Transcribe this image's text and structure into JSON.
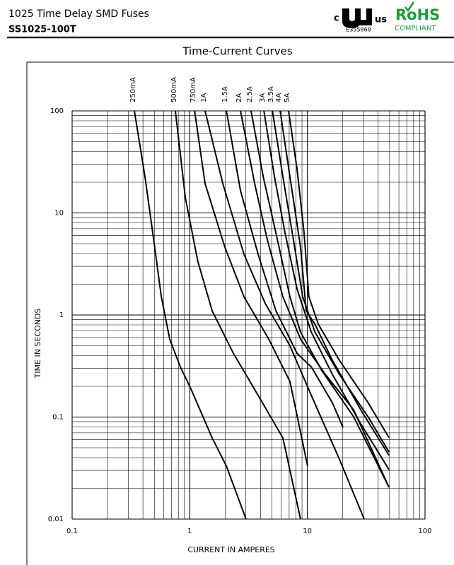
{
  "header": {
    "title": "1025 Time Delay SMD Fuses",
    "part": "SS1025-100T",
    "ul_c": "c",
    "ul_us": "us",
    "ul_file": "E355868",
    "rohs": "RoHS",
    "rohs_sub": "COMPLIANT"
  },
  "chart_data": {
    "type": "line",
    "title": "Time-Current Curves",
    "x_label": "CURRENT IN AMPERES",
    "y_label": "TIME IN SECONDS",
    "xscale": "log",
    "yscale": "log",
    "grid": true,
    "minor_grid": true,
    "color": "#000000",
    "xlim": [
      0.1,
      100
    ],
    "xticks": [
      0.1,
      1,
      10,
      100
    ],
    "ylim": [
      0.01,
      100
    ],
    "yticks": [
      0.01,
      0.1,
      1,
      10,
      100
    ],
    "series": [
      {
        "name": "250mA",
        "x": [
          0.338,
          0.416,
          0.499,
          0.573,
          0.676,
          0.832,
          1.02,
          1.55,
          2.05,
          3.01
        ],
        "values": [
          100,
          22.7,
          5.0,
          1.51,
          0.58,
          0.31,
          0.19,
          0.0625,
          0.033,
          0.01
        ]
      },
      {
        "name": "500mA",
        "x": [
          0.755,
          0.917,
          1.17,
          1.55,
          2.35,
          3.81,
          6.19,
          8.75
        ],
        "values": [
          100,
          14.1,
          3.36,
          1.1,
          0.42,
          0.163,
          0.0625,
          0.01
        ]
      },
      {
        "name": "750mA",
        "x": [
          1.1,
          1.35,
          1.99,
          2.89,
          4.7,
          7.11,
          10.05
        ],
        "values": [
          100,
          19.4,
          4.62,
          1.51,
          0.58,
          0.223,
          0.033
        ]
      },
      {
        "name": "1A",
        "x": [
          1.35,
          1.91,
          2.89,
          4.39,
          7.11,
          10.8,
          18.7,
          30.4
        ],
        "values": [
          100,
          19.4,
          3.94,
          1.29,
          0.5,
          0.163,
          0.0387,
          0.01
        ]
      },
      {
        "name": "1.5A",
        "x": [
          2.05,
          2.7,
          3.81,
          5.4,
          8.17,
          10.8,
          16.3,
          20.1
        ],
        "values": [
          100,
          16.5,
          3.94,
          1.1,
          0.42,
          0.31,
          0.138,
          0.079
        ]
      },
      {
        "name": "2A",
        "x": [
          2.7,
          3.56,
          4.57,
          6.19,
          8.75,
          14.2,
          24.7,
          49.4
        ],
        "values": [
          100,
          19.4,
          5.42,
          1.51,
          0.58,
          0.262,
          0.118,
          0.0205
        ]
      },
      {
        "name": "2.5A",
        "x": [
          3.32,
          4.21,
          5.4,
          7.11,
          8.75,
          13.3,
          24.7,
          49.4
        ],
        "values": [
          100,
          22.7,
          6.35,
          1.51,
          0.68,
          0.284,
          0.101,
          0.0205
        ]
      },
      {
        "name": "3A",
        "x": [
          4.27,
          5.25,
          6.46,
          8.17,
          10.8,
          16.3,
          28.4,
          49.4
        ],
        "values": [
          100,
          22.7,
          6.35,
          1.79,
          0.68,
          0.262,
          0.086,
          0.0305
        ]
      },
      {
        "name": "3.5A",
        "x": [
          5.04,
          6.19,
          7.62,
          9.12,
          11.6,
          18.7,
          32.7,
          49.4
        ],
        "values": [
          100,
          22.7,
          5.42,
          1.51,
          0.68,
          0.262,
          0.101,
          0.0454
        ]
      },
      {
        "name": "4A",
        "x": [
          5.86,
          7.11,
          8.75,
          9.77,
          11.6,
          16.3,
          28.4,
          49.4
        ],
        "values": [
          100,
          22.7,
          4.62,
          1.1,
          0.81,
          0.36,
          0.118,
          0.042
        ]
      },
      {
        "name": "5A",
        "x": [
          6.92,
          8.17,
          9.37,
          10.3,
          12.4,
          18.7,
          32.7,
          49.4
        ],
        "values": [
          100,
          26.7,
          6.35,
          1.51,
          0.81,
          0.36,
          0.139,
          0.0627
        ]
      }
    ]
  }
}
